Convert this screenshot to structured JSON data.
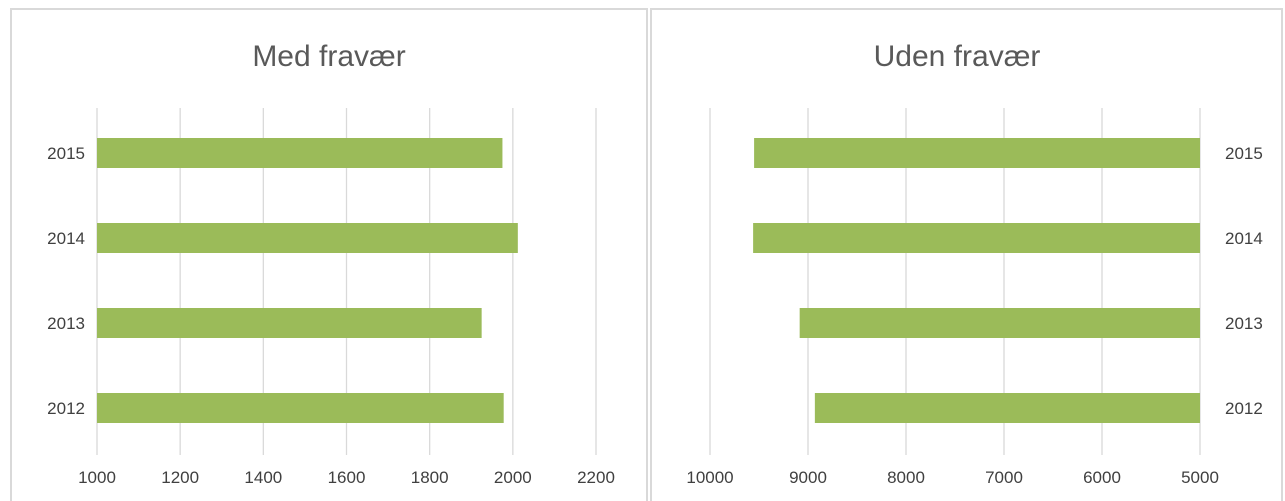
{
  "colors": {
    "bar": "#9bbb59",
    "grid": "#d9d9d9",
    "text": "#404040"
  },
  "chart_data": [
    {
      "type": "bar",
      "orientation": "horizontal",
      "title": "Med fravær",
      "categories": [
        "2015",
        "2014",
        "2013",
        "2012"
      ],
      "values": [
        1975,
        2012,
        1925,
        1978
      ],
      "xlim": [
        1000,
        2200
      ],
      "xticks": [
        "1000",
        "1200",
        "1400",
        "1600",
        "1800",
        "2000",
        "2200"
      ],
      "axis_reversed": false,
      "category_labels": "left",
      "grid": true
    },
    {
      "type": "bar",
      "orientation": "horizontal",
      "title": "Uden fravær",
      "categories": [
        "2015",
        "2014",
        "2013",
        "2012"
      ],
      "values": [
        9550,
        9560,
        9085,
        8930
      ],
      "xlim": [
        5000,
        10000
      ],
      "xticks": [
        "10000",
        "9000",
        "8000",
        "7000",
        "6000",
        "5000"
      ],
      "axis_reversed": true,
      "category_labels": "right",
      "grid": true
    }
  ]
}
